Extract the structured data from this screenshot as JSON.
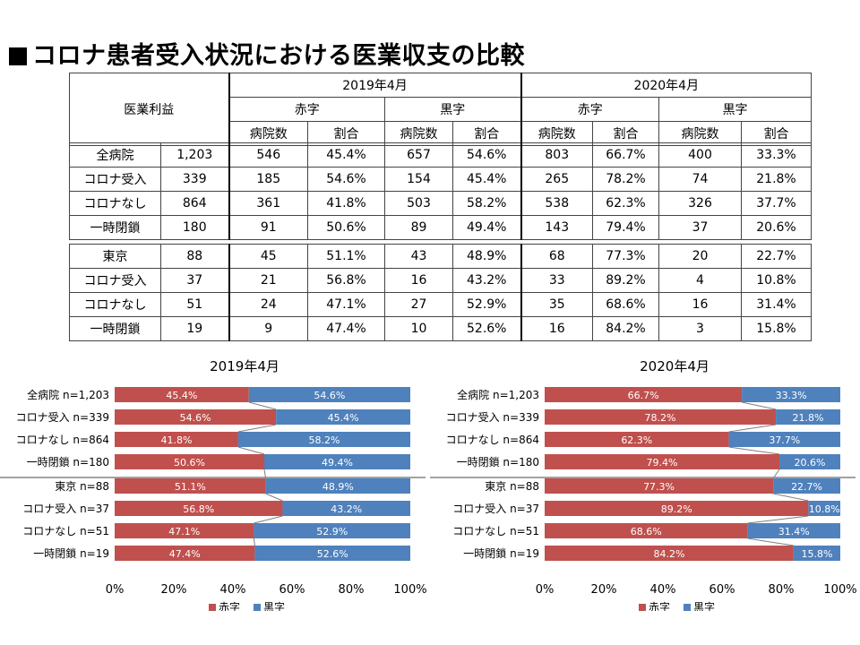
{
  "title": "コロナ患者受入状況における医業収支の比較",
  "table": {
    "header_label": "医業利益",
    "periods": [
      "2019年4月",
      "2020年4月"
    ],
    "groups": [
      "赤字",
      "黒字",
      "赤字",
      "黒字"
    ],
    "subcols": [
      "病院数",
      "割合",
      "病院数",
      "割合",
      "病院数",
      "割合",
      "病院数",
      "割合"
    ],
    "section1": [
      [
        "全病院",
        "1,203",
        "546",
        "45.4%",
        "657",
        "54.6%",
        "803",
        "66.7%",
        "400",
        "33.3%"
      ],
      [
        "コロナ受入",
        "339",
        "185",
        "54.6%",
        "154",
        "45.4%",
        "265",
        "78.2%",
        "74",
        "21.8%"
      ],
      [
        "コロナなし",
        "864",
        "361",
        "41.8%",
        "503",
        "58.2%",
        "538",
        "62.3%",
        "326",
        "37.7%"
      ],
      [
        "一時閉鎖",
        "180",
        "91",
        "50.6%",
        "89",
        "49.4%",
        "143",
        "79.4%",
        "37",
        "20.6%"
      ]
    ],
    "section2": [
      [
        "東京",
        "88",
        "45",
        "51.1%",
        "43",
        "48.9%",
        "68",
        "77.3%",
        "20",
        "22.7%"
      ],
      [
        "コロナ受入",
        "37",
        "21",
        "56.8%",
        "16",
        "43.2%",
        "33",
        "89.2%",
        "4",
        "10.8%"
      ],
      [
        "コロナなし",
        "51",
        "24",
        "47.1%",
        "27",
        "52.9%",
        "35",
        "68.6%",
        "16",
        "31.4%"
      ],
      [
        "一時閉鎖",
        "19",
        "9",
        "47.4%",
        "10",
        "52.6%",
        "16",
        "84.2%",
        "3",
        "15.8%"
      ]
    ]
  },
  "colors": {
    "red": "#C0504D",
    "blue": "#4F81BD",
    "connector": "#7f7f7f"
  },
  "chart_data": [
    {
      "type": "bar",
      "stacked": true,
      "orientation": "horizontal",
      "title": "2019年4月",
      "categories": [
        "全病院 n=1,203",
        "コロナ受入 n=339",
        "コロナなし n=864",
        "一時閉鎖 n=180",
        "東京 n=88",
        "コロナ受入 n=37",
        "コロナなし n=51",
        "一時閉鎖 n=19"
      ],
      "series": [
        {
          "name": "赤字",
          "values": [
            45.4,
            54.6,
            41.8,
            50.6,
            51.1,
            56.8,
            47.1,
            47.4
          ],
          "labels": [
            "45.4%",
            "54.6%",
            "41.8%",
            "50.6%",
            "51.1%",
            "56.8%",
            "47.1%",
            "47.4%"
          ]
        },
        {
          "name": "黒字",
          "values": [
            54.6,
            45.4,
            58.2,
            49.4,
            48.9,
            43.2,
            52.9,
            52.6
          ],
          "labels": [
            "54.6%",
            "45.4%",
            "58.2%",
            "49.4%",
            "48.9%",
            "43.2%",
            "52.9%",
            "52.6%"
          ]
        }
      ],
      "xlim": [
        0,
        100
      ],
      "xticks": [
        "0%",
        "20%",
        "40%",
        "60%",
        "80%",
        "100%"
      ],
      "legend": "bottom"
    },
    {
      "type": "bar",
      "stacked": true,
      "orientation": "horizontal",
      "title": "2020年4月",
      "categories": [
        "全病院 n=1,203",
        "コロナ受入 n=339",
        "コロナなし n=864",
        "一時閉鎖 n=180",
        "東京 n=88",
        "コロナ受入 n=37",
        "コロナなし n=51",
        "一時閉鎖 n=19"
      ],
      "series": [
        {
          "name": "赤字",
          "values": [
            66.7,
            78.2,
            62.3,
            79.4,
            77.3,
            89.2,
            68.6,
            84.2
          ],
          "labels": [
            "66.7%",
            "78.2%",
            "62.3%",
            "79.4%",
            "77.3%",
            "89.2%",
            "68.6%",
            "84.2%"
          ]
        },
        {
          "name": "黒字",
          "values": [
            33.3,
            21.8,
            37.7,
            20.6,
            22.7,
            10.8,
            31.4,
            15.8
          ],
          "labels": [
            "33.3%",
            "21.8%",
            "37.7%",
            "20.6%",
            "22.7%",
            "10.8%",
            "31.4%",
            "15.8%"
          ]
        }
      ],
      "xlim": [
        0,
        100
      ],
      "xticks": [
        "0%",
        "20%",
        "40%",
        "60%",
        "80%",
        "100%"
      ],
      "legend": "bottom"
    }
  ]
}
